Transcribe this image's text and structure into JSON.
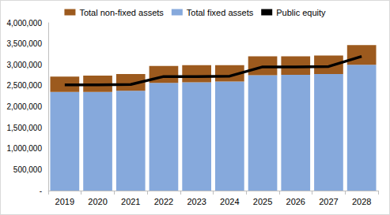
{
  "chart_data": {
    "type": "bar",
    "stacked": true,
    "categories": [
      "2019",
      "2020",
      "2021",
      "2022",
      "2023",
      "2024",
      "2025",
      "2026",
      "2027",
      "2028"
    ],
    "series": [
      {
        "name": "Total non-fixed assets",
        "type": "bar",
        "color": "#9c5a1e",
        "values": [
          370000,
          390000,
          400000,
          400000,
          410000,
          390000,
          450000,
          440000,
          440000,
          470000
        ]
      },
      {
        "name": "Total fixed assets",
        "type": "bar",
        "color": "#86a9dc",
        "values": [
          2350000,
          2350000,
          2380000,
          2570000,
          2580000,
          2600000,
          2750000,
          2760000,
          2780000,
          3000000
        ]
      },
      {
        "name": "Public equity",
        "type": "line",
        "color": "#000000",
        "values": [
          2520000,
          2520000,
          2530000,
          2720000,
          2720000,
          2730000,
          2950000,
          2950000,
          2960000,
          3200000
        ]
      }
    ],
    "ylim": [
      0,
      4000000
    ],
    "yticks": [
      {
        "value": 0,
        "label": "-"
      },
      {
        "value": 500000,
        "label": "500,000"
      },
      {
        "value": 1000000,
        "label": "1,000,000"
      },
      {
        "value": 1500000,
        "label": "1,500,000"
      },
      {
        "value": 2000000,
        "label": "2,000,000"
      },
      {
        "value": 2500000,
        "label": "2,500,000"
      },
      {
        "value": 3000000,
        "label": "3,000,000"
      },
      {
        "value": 3500000,
        "label": "3,500,000"
      },
      {
        "value": 4000000,
        "label": "4,000,000"
      }
    ],
    "grid": false,
    "legend": "top"
  }
}
